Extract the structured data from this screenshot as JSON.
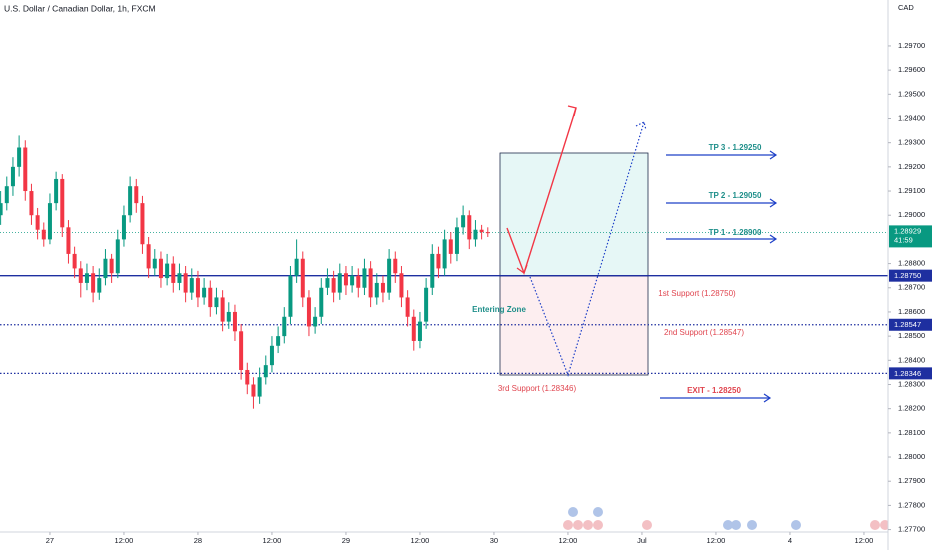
{
  "chart_data": {
    "type": "candlestick",
    "title": "U.S. Dollar / Canadian Dollar, 1h, FXCM",
    "y_axis_label": "CAD",
    "up_color": "#089981",
    "down_color": "#f23645",
    "grid": false,
    "xlim": [
      -8.1,
      135.9
    ],
    "ylim": [
      1.2769,
      1.2989
    ],
    "xticks": [
      {
        "value": 0,
        "label": "27"
      },
      {
        "value": 12,
        "label": "12:00"
      },
      {
        "value": 24,
        "label": "28"
      },
      {
        "value": 36,
        "label": "12:00"
      },
      {
        "value": 48,
        "label": "29"
      },
      {
        "value": 60,
        "label": "12:00"
      },
      {
        "value": 72,
        "label": "30"
      },
      {
        "value": 84,
        "label": "12:00"
      },
      {
        "value": 96,
        "label": "Jul"
      },
      {
        "value": 108,
        "label": "12:00"
      },
      {
        "value": 120,
        "label": "4"
      },
      {
        "value": 132,
        "label": "12:00"
      }
    ],
    "yticks": [
      {
        "value": 1.277,
        "label": "1.27700"
      },
      {
        "value": 1.278,
        "label": "1.27800"
      },
      {
        "value": 1.279,
        "label": "1.27900"
      },
      {
        "value": 1.28,
        "label": "1.28000"
      },
      {
        "value": 1.281,
        "label": "1.28100"
      },
      {
        "value": 1.282,
        "label": "1.28200"
      },
      {
        "value": 1.283,
        "label": "1.28300"
      },
      {
        "value": 1.284,
        "label": "1.28400"
      },
      {
        "value": 1.285,
        "label": "1.28500"
      },
      {
        "value": 1.286,
        "label": "1.28600"
      },
      {
        "value": 1.287,
        "label": "1.28700"
      },
      {
        "value": 1.288,
        "label": "1.28800"
      },
      {
        "value": 1.29,
        "label": "1.29000"
      },
      {
        "value": 1.291,
        "label": "1.29100"
      },
      {
        "value": 1.292,
        "label": "1.29200"
      },
      {
        "value": 1.293,
        "label": "1.29300"
      },
      {
        "value": 1.294,
        "label": "1.29400"
      },
      {
        "value": 1.295,
        "label": "1.29500"
      },
      {
        "value": 1.296,
        "label": "1.29600"
      },
      {
        "value": 1.297,
        "label": "1.29700"
      }
    ],
    "x": [
      -8,
      -7,
      -6,
      -5,
      -4,
      -3,
      -2,
      -1,
      0,
      1,
      2,
      3,
      4,
      5,
      6,
      7,
      8,
      9,
      10,
      11,
      12,
      13,
      14,
      15,
      16,
      17,
      18,
      19,
      20,
      21,
      22,
      23,
      24,
      25,
      26,
      27,
      28,
      29,
      30,
      31,
      32,
      33,
      34,
      35,
      36,
      37,
      38,
      39,
      40,
      41,
      42,
      43,
      44,
      45,
      46,
      47,
      48,
      49,
      50,
      51,
      52,
      53,
      54,
      55,
      56,
      57,
      58,
      59,
      60,
      61,
      62,
      63,
      64,
      65,
      66,
      67,
      68,
      69,
      70,
      71
    ],
    "ohlc": [
      [
        1.29,
        1.291,
        1.2896,
        1.2905
      ],
      [
        1.2905,
        1.2916,
        1.2902,
        1.2912
      ],
      [
        1.2912,
        1.2924,
        1.2908,
        1.292
      ],
      [
        1.292,
        1.2933,
        1.2916,
        1.2928
      ],
      [
        1.2928,
        1.2931,
        1.2906,
        1.291
      ],
      [
        1.291,
        1.2913,
        1.2896,
        1.29
      ],
      [
        1.29,
        1.2903,
        1.289,
        1.2894
      ],
      [
        1.2894,
        1.2897,
        1.2887,
        1.289
      ],
      [
        1.289,
        1.2909,
        1.2888,
        1.2905
      ],
      [
        1.2905,
        1.2918,
        1.2902,
        1.2915
      ],
      [
        1.2915,
        1.2917,
        1.2891,
        1.2895
      ],
      [
        1.2895,
        1.2898,
        1.288,
        1.2884
      ],
      [
        1.2884,
        1.2887,
        1.2874,
        1.2878
      ],
      [
        1.2878,
        1.2881,
        1.2866,
        1.2872
      ],
      [
        1.2872,
        1.288,
        1.2869,
        1.2876
      ],
      [
        1.2876,
        1.2879,
        1.2864,
        1.2868
      ],
      [
        1.2868,
        1.2878,
        1.2865,
        1.2874
      ],
      [
        1.2874,
        1.2886,
        1.2871,
        1.2882
      ],
      [
        1.2882,
        1.2884,
        1.2872,
        1.2876
      ],
      [
        1.2876,
        1.2894,
        1.2874,
        1.289
      ],
      [
        1.289,
        1.2904,
        1.2887,
        1.29
      ],
      [
        1.29,
        1.2916,
        1.2897,
        1.2912
      ],
      [
        1.2912,
        1.2915,
        1.2901,
        1.2905
      ],
      [
        1.2905,
        1.2908,
        1.2884,
        1.2888
      ],
      [
        1.2888,
        1.2891,
        1.2874,
        1.2878
      ],
      [
        1.2878,
        1.2886,
        1.2875,
        1.2882
      ],
      [
        1.2882,
        1.2885,
        1.287,
        1.2874
      ],
      [
        1.2874,
        1.2884,
        1.2871,
        1.288
      ],
      [
        1.288,
        1.2883,
        1.2868,
        1.2872
      ],
      [
        1.2872,
        1.288,
        1.2869,
        1.2876
      ],
      [
        1.2876,
        1.2879,
        1.2864,
        1.2868
      ],
      [
        1.2868,
        1.2878,
        1.2865,
        1.2874
      ],
      [
        1.2874,
        1.2877,
        1.2862,
        1.2866
      ],
      [
        1.2866,
        1.2874,
        1.2863,
        1.287
      ],
      [
        1.287,
        1.2873,
        1.2858,
        1.2862
      ],
      [
        1.2862,
        1.287,
        1.2859,
        1.2866
      ],
      [
        1.2866,
        1.2869,
        1.2852,
        1.2856
      ],
      [
        1.2856,
        1.2864,
        1.2853,
        1.286
      ],
      [
        1.286,
        1.2863,
        1.2848,
        1.2852
      ],
      [
        1.2852,
        1.2855,
        1.2832,
        1.2836
      ],
      [
        1.2836,
        1.2839,
        1.2826,
        1.283
      ],
      [
        1.283,
        1.2833,
        1.282,
        1.2825
      ],
      [
        1.2825,
        1.2837,
        1.2822,
        1.2833
      ],
      [
        1.2833,
        1.2842,
        1.283,
        1.2838
      ],
      [
        1.2838,
        1.285,
        1.2835,
        1.2846
      ],
      [
        1.2846,
        1.2854,
        1.2843,
        1.285
      ],
      [
        1.285,
        1.2862,
        1.2847,
        1.2858
      ],
      [
        1.2858,
        1.2879,
        1.2855,
        1.2875
      ],
      [
        1.2875,
        1.289,
        1.2872,
        1.2882
      ],
      [
        1.2882,
        1.2885,
        1.2862,
        1.2866
      ],
      [
        1.2866,
        1.2869,
        1.285,
        1.2854
      ],
      [
        1.2854,
        1.2862,
        1.2851,
        1.2858
      ],
      [
        1.2858,
        1.2874,
        1.2855,
        1.287
      ],
      [
        1.287,
        1.2878,
        1.2867,
        1.2874
      ],
      [
        1.2874,
        1.2877,
        1.2864,
        1.2868
      ],
      [
        1.2868,
        1.288,
        1.2865,
        1.2876
      ],
      [
        1.2876,
        1.2879,
        1.2867,
        1.2871
      ],
      [
        1.2871,
        1.2879,
        1.2868,
        1.2875
      ],
      [
        1.2875,
        1.2878,
        1.2866,
        1.287
      ],
      [
        1.287,
        1.2882,
        1.2867,
        1.2878
      ],
      [
        1.2878,
        1.2881,
        1.2862,
        1.2866
      ],
      [
        1.2866,
        1.2876,
        1.2863,
        1.2872
      ],
      [
        1.2872,
        1.2875,
        1.2864,
        1.2868
      ],
      [
        1.2868,
        1.2886,
        1.2865,
        1.2882
      ],
      [
        1.2882,
        1.2885,
        1.2872,
        1.2876
      ],
      [
        1.2876,
        1.2879,
        1.2862,
        1.2866
      ],
      [
        1.2866,
        1.2869,
        1.2854,
        1.2858
      ],
      [
        1.2858,
        1.2861,
        1.2844,
        1.2848
      ],
      [
        1.2848,
        1.286,
        1.2845,
        1.2856
      ],
      [
        1.2856,
        1.2874,
        1.2853,
        1.287
      ],
      [
        1.287,
        1.2888,
        1.2867,
        1.2884
      ],
      [
        1.2884,
        1.2887,
        1.2874,
        1.2878
      ],
      [
        1.2878,
        1.2894,
        1.2875,
        1.289
      ],
      [
        1.289,
        1.2893,
        1.288,
        1.2884
      ],
      [
        1.2884,
        1.2899,
        1.2881,
        1.2895
      ],
      [
        1.2895,
        1.2904,
        1.2892,
        1.29
      ],
      [
        1.29,
        1.2902,
        1.2886,
        1.289
      ],
      [
        1.289,
        1.2898,
        1.2887,
        1.2894
      ],
      [
        1.2894,
        1.2896,
        1.289,
        1.2893
      ],
      [
        1.2893,
        1.2895,
        1.2891,
        1.28929
      ]
    ],
    "current_price": {
      "value": 1.28929,
      "label": "1.28929",
      "countdown": "41:59",
      "color": "#089981"
    },
    "price_lines": [
      {
        "value": 1.2875,
        "label": "1.28750",
        "style": "solid",
        "color": "#1e2fa0"
      },
      {
        "value": 1.28547,
        "label": "1.28547",
        "style": "dotted",
        "color": "#1e2fa0"
      },
      {
        "value": 1.28346,
        "label": "1.28346",
        "style": "dotted",
        "color": "#1e2fa0"
      }
    ],
    "annotations": [
      "TP 3 - 1.29250",
      "TP 2 - 1.29050",
      "TP 1 - 1.28900",
      "1st Support (1.28750)",
      "2nd Support (1.28547)",
      "3rd Support (1.28346)",
      "EXIT - 1.28250",
      "Entering Zone"
    ]
  }
}
